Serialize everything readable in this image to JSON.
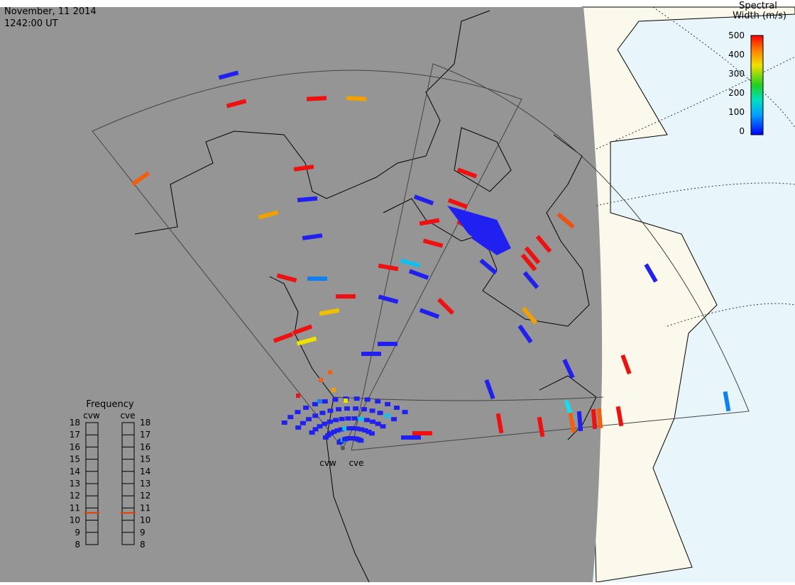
{
  "header": {
    "date": "November, 11 2014",
    "time": "1242:00 UT"
  },
  "colorbar": {
    "title": [
      "Spectral",
      "Width (m/s)"
    ],
    "ticks": [
      0,
      100,
      200,
      300,
      400,
      500
    ],
    "lim": [
      0,
      500
    ]
  },
  "radars": [
    "cvw",
    "cve"
  ],
  "frequency": {
    "title": "Frequency",
    "ticks": [
      8,
      9,
      10,
      11,
      12,
      13,
      14,
      15,
      16,
      17,
      18
    ],
    "lim": [
      8,
      18
    ],
    "values": [
      10.6,
      10.6
    ]
  }
}
